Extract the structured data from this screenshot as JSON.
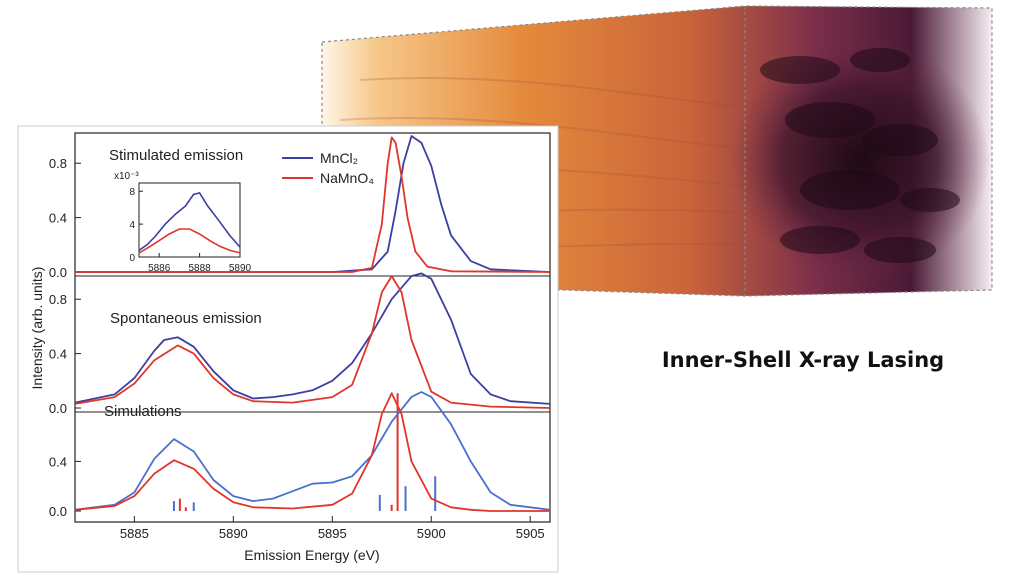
{
  "caption": "Inner-Shell X-ray Lasing",
  "colors": {
    "mncl2": "#3b3fa3",
    "namno4": "#e0352b",
    "mncl2_sim": "#4a6fd0"
  },
  "chart_data": {
    "type": "line",
    "xlabel": "Emission Energy  (eV)",
    "ylabel": "Intensity  (arb. units)",
    "xlim": [
      5882,
      5906
    ],
    "x_ticks": [
      "5885",
      "5890",
      "5895",
      "5900",
      "5905"
    ],
    "legend": {
      "position": "top-center",
      "entries": [
        "MnCl₂",
        "NaMnO₄"
      ]
    },
    "panels": [
      {
        "label": "Stimulated emission",
        "ylim": [
          0,
          1.0
        ],
        "y_ticks": [
          "0.0",
          "0.4",
          "0.8"
        ],
        "series": [
          {
            "name": "MnCl₂",
            "x": [
              5882,
              5895,
              5897,
              5897.8,
              5898.2,
              5898.6,
              5899.0,
              5899.5,
              5900.0,
              5900.5,
              5901.0,
              5902.0,
              5903,
              5906
            ],
            "values": [
              0,
              0,
              0.02,
              0.15,
              0.45,
              0.8,
              1.0,
              0.95,
              0.78,
              0.5,
              0.27,
              0.08,
              0.02,
              0
            ]
          },
          {
            "name": "NaMnO₄",
            "x": [
              5882,
              5896,
              5897.0,
              5897.5,
              5897.8,
              5898.0,
              5898.2,
              5898.5,
              5898.8,
              5899.2,
              5899.8,
              5901,
              5906
            ],
            "values": [
              0,
              0,
              0.03,
              0.35,
              0.8,
              0.99,
              0.95,
              0.7,
              0.4,
              0.15,
              0.04,
              0.005,
              0
            ]
          }
        ],
        "inset": {
          "x_ticks": [
            "5886",
            "5888",
            "5890"
          ],
          "y_ticks": [
            "0",
            "4",
            "8"
          ],
          "y_multiplier": "x10⁻³",
          "xlim": [
            5885,
            5890
          ],
          "ylim": [
            0,
            9
          ],
          "series": [
            {
              "name": "MnCl₂",
              "x": [
                5885.0,
                5885.4,
                5885.8,
                5886.3,
                5886.8,
                5887.3,
                5887.7,
                5888.0,
                5888.4,
                5888.9,
                5889.5,
                5890.0
              ],
              "values": [
                0.8,
                1.5,
                2.5,
                4.0,
                5.2,
                6.2,
                7.6,
                7.8,
                6.2,
                4.6,
                2.6,
                1.2
              ]
            },
            {
              "name": "NaMnO₄",
              "x": [
                5885.0,
                5885.5,
                5886.0,
                5886.5,
                5887.0,
                5887.5,
                5888.0,
                5888.5,
                5889.0,
                5889.5,
                5890.0
              ],
              "values": [
                0.5,
                1.2,
                2.0,
                2.8,
                3.4,
                3.4,
                2.8,
                2.0,
                1.3,
                0.8,
                0.5
              ]
            }
          ]
        }
      },
      {
        "label": "Spontaneous emission",
        "ylim": [
          0,
          1.0
        ],
        "y_ticks": [
          "0.0",
          "0.4",
          "0.8"
        ],
        "series": [
          {
            "name": "MnCl₂",
            "x": [
              5882,
              5884,
              5885,
              5886,
              5886.5,
              5887.2,
              5888,
              5889,
              5890,
              5891,
              5892,
              5893,
              5894,
              5895,
              5896,
              5897,
              5898,
              5899,
              5899.5,
              5900,
              5901,
              5902,
              5903,
              5904,
              5906
            ],
            "values": [
              0.04,
              0.1,
              0.22,
              0.42,
              0.5,
              0.52,
              0.45,
              0.27,
              0.13,
              0.07,
              0.08,
              0.1,
              0.13,
              0.2,
              0.33,
              0.55,
              0.8,
              0.97,
              0.99,
              0.95,
              0.65,
              0.25,
              0.1,
              0.05,
              0.03
            ]
          },
          {
            "name": "NaMnO₄",
            "x": [
              5882,
              5884,
              5885,
              5886,
              5887.2,
              5888,
              5889,
              5890,
              5891,
              5893,
              5895,
              5896,
              5897,
              5897.5,
              5898.0,
              5898.5,
              5899.0,
              5900,
              5901,
              5903,
              5906
            ],
            "values": [
              0.03,
              0.08,
              0.18,
              0.35,
              0.46,
              0.4,
              0.22,
              0.1,
              0.05,
              0.04,
              0.08,
              0.17,
              0.55,
              0.85,
              0.97,
              0.85,
              0.5,
              0.12,
              0.04,
              0.01,
              0
            ]
          }
        ]
      },
      {
        "label": "Simulations",
        "ylim": [
          0,
          1.0
        ],
        "y_ticks": [
          "0.0",
          "0.4"
        ],
        "series": [
          {
            "name": "MnCl₂",
            "x": [
              5882,
              5884,
              5885,
              5886,
              5887,
              5888,
              5889,
              5890,
              5891,
              5892,
              5893,
              5894,
              5895,
              5896,
              5897,
              5898,
              5899,
              5899.5,
              5900,
              5901,
              5902,
              5903,
              5904,
              5906
            ],
            "values": [
              0.01,
              0.05,
              0.15,
              0.42,
              0.58,
              0.48,
              0.25,
              0.12,
              0.08,
              0.1,
              0.16,
              0.22,
              0.23,
              0.28,
              0.45,
              0.72,
              0.92,
              0.96,
              0.92,
              0.7,
              0.4,
              0.15,
              0.05,
              0.01
            ]
          },
          {
            "name": "NaMnO₄",
            "x": [
              5882,
              5884,
              5885,
              5886,
              5887,
              5888,
              5889,
              5890,
              5891,
              5893,
              5895,
              5896,
              5897,
              5897.5,
              5898.0,
              5898.5,
              5899.0,
              5900,
              5901,
              5902,
              5903,
              5906
            ],
            "values": [
              0.01,
              0.04,
              0.12,
              0.3,
              0.41,
              0.34,
              0.18,
              0.07,
              0.03,
              0.02,
              0.05,
              0.14,
              0.45,
              0.78,
              0.95,
              0.78,
              0.4,
              0.1,
              0.03,
              0.01,
              0,
              0
            ]
          }
        ],
        "sticks": [
          {
            "series": "MnCl₂",
            "x": [
              5887.0,
              5888.0,
              5897.4,
              5898.7,
              5900.2
            ],
            "heights": [
              0.08,
              0.07,
              0.13,
              0.2,
              0.28
            ]
          },
          {
            "series": "NaMnO₄",
            "x": [
              5887.3,
              5887.6,
              5898.0,
              5898.3
            ],
            "heights": [
              0.1,
              0.03,
              0.05,
              0.95
            ]
          }
        ]
      }
    ]
  }
}
